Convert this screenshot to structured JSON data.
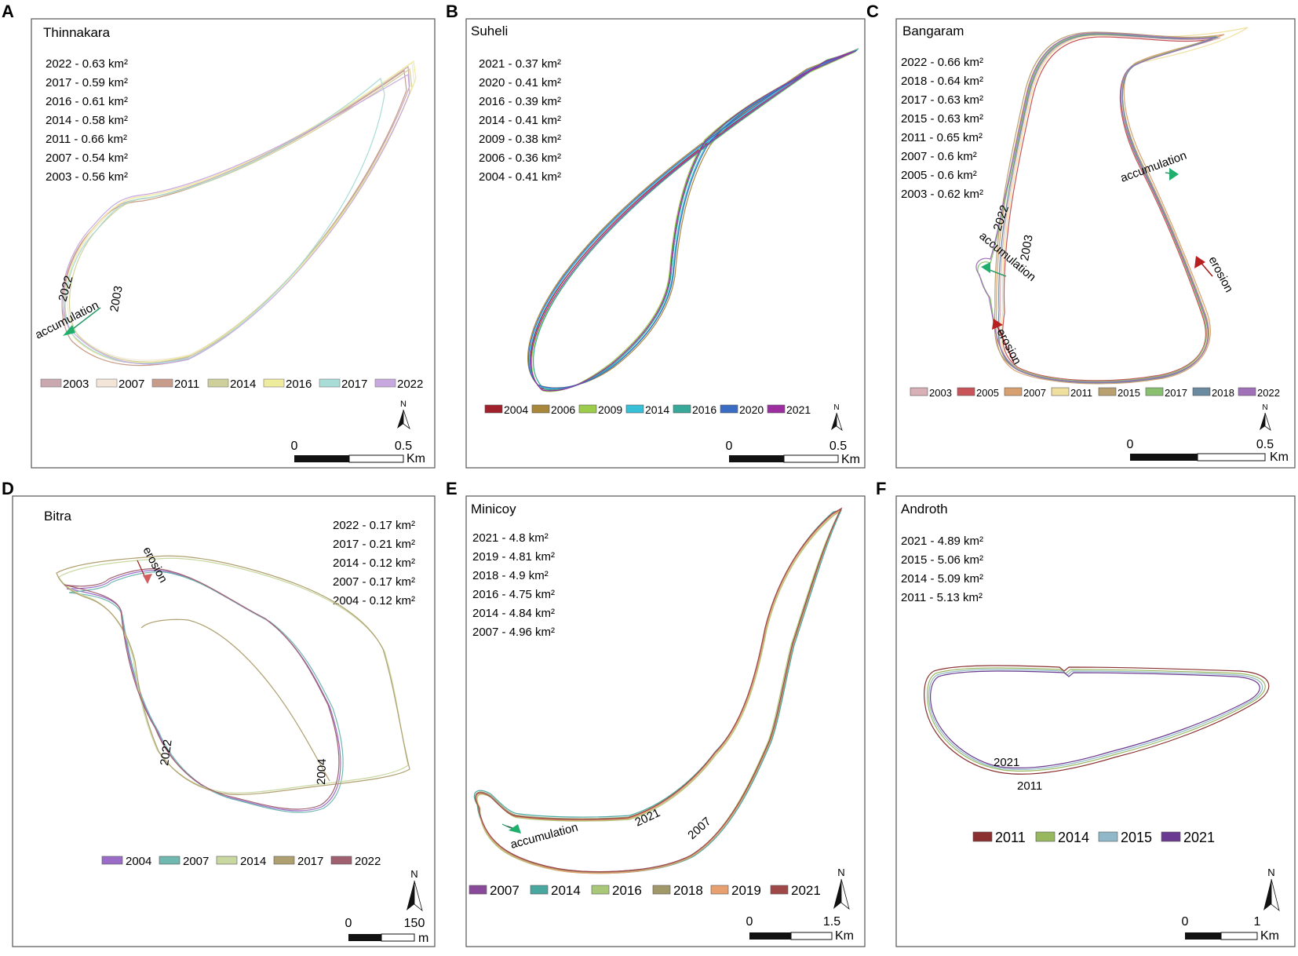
{
  "panels": [
    {
      "letter": "A",
      "title": "Thinnakara",
      "areas": [
        "2022 - 0.63 km²",
        "2017 - 0.59 km²",
        "2016 - 0.61 km²",
        "2014 - 0.58 km²",
        "2011 - 0.66 km²",
        "2007 - 0.54 km²",
        "2003 - 0.56 km²"
      ],
      "legend": [
        {
          "year": "2003",
          "color": "#c9a8b0"
        },
        {
          "year": "2007",
          "color": "#f3e6d8"
        },
        {
          "year": "2011",
          "color": "#c89c8a"
        },
        {
          "year": "2014",
          "color": "#cfcf9a"
        },
        {
          "year": "2016",
          "color": "#eeec9c"
        },
        {
          "year": "2017",
          "color": "#a8dcd6"
        },
        {
          "year": "2022",
          "color": "#c7a9df"
        }
      ],
      "annotations": [
        "2022",
        "accumulation",
        "2003"
      ],
      "scale": {
        "zero": "0",
        "max": "0.5",
        "unit": "Km"
      },
      "north": "N"
    },
    {
      "letter": "B",
      "title": "Suheli",
      "areas": [
        "2021 - 0.37 km²",
        "2020 - 0.41 km²",
        "2016 - 0.39 km²",
        "2014 - 0.41 km²",
        "2009 - 0.38 km²",
        "2006 - 0.36 km²",
        "2004 - 0.41 km²"
      ],
      "legend": [
        {
          "year": "2004",
          "color": "#a0202c"
        },
        {
          "year": "2006",
          "color": "#a8863a"
        },
        {
          "year": "2009",
          "color": "#9ccc4a"
        },
        {
          "year": "2014",
          "color": "#38c0d8"
        },
        {
          "year": "2016",
          "color": "#38a898"
        },
        {
          "year": "2020",
          "color": "#3a6cc4"
        },
        {
          "year": "2021",
          "color": "#9c2ea0"
        }
      ],
      "annotations": [],
      "scale": {
        "zero": "0",
        "max": "0.5",
        "unit": "Km"
      },
      "north": "N"
    },
    {
      "letter": "C",
      "title": "Bangaram",
      "areas": [
        "2022 - 0.66 km²",
        "2018 - 0.64 km²",
        "2017 - 0.63 km²",
        "2015 - 0.63 km²",
        "2011 - 0.65 km²",
        "2007 - 0.6 km²",
        "2005 - 0.6 km²",
        "2003 - 0.62 km²"
      ],
      "legend": [
        {
          "year": "2003",
          "color": "#d8b0b6"
        },
        {
          "year": "2005",
          "color": "#c8545a"
        },
        {
          "year": "2007",
          "color": "#d8a070"
        },
        {
          "year": "2011",
          "color": "#f0e0a0"
        },
        {
          "year": "2015",
          "color": "#b8a070"
        },
        {
          "year": "2017",
          "color": "#88c070"
        },
        {
          "year": "2018",
          "color": "#6a8aa0"
        },
        {
          "year": "2022",
          "color": "#a070b8"
        }
      ],
      "annotations": [
        "accumulation",
        "2022",
        "2003",
        "accumulation",
        "erosion",
        "erosion"
      ],
      "scale": {
        "zero": "0",
        "max": "0.5",
        "unit": "Km"
      },
      "north": "N"
    },
    {
      "letter": "D",
      "title": "Bitra",
      "areas": [
        "2022 - 0.17 km²",
        "2017 - 0.21 km²",
        "2014 - 0.12 km²",
        "2007 - 0.17 km²",
        "2004 - 0.12 km²"
      ],
      "legend": [
        {
          "year": "2004",
          "color": "#9a6cc8"
        },
        {
          "year": "2007",
          "color": "#70b8b0"
        },
        {
          "year": "2014",
          "color": "#c8d8a0"
        },
        {
          "year": "2017",
          "color": "#b0a070"
        },
        {
          "year": "2022",
          "color": "#a06070"
        }
      ],
      "annotations": [
        "erosion",
        "2022",
        "2004"
      ],
      "scale": {
        "zero": "0",
        "max": "150",
        "unit": "m"
      },
      "north": "N"
    },
    {
      "letter": "E",
      "title": "Minicoy",
      "areas": [
        "2021 - 4.8 km²",
        "2019 - 4.81 km²",
        "2018 - 4.9 km²",
        "2016 - 4.75 km²",
        "2014 - 4.84 km²",
        "2007 - 4.96 km²"
      ],
      "legend": [
        {
          "year": "2007",
          "color": "#8a4a9a"
        },
        {
          "year": "2014",
          "color": "#48a8a0"
        },
        {
          "year": "2016",
          "color": "#a8c878"
        },
        {
          "year": "2018",
          "color": "#a09868"
        },
        {
          "year": "2019",
          "color": "#e8a070"
        },
        {
          "year": "2021",
          "color": "#a04848"
        }
      ],
      "annotations": [
        "accumulation",
        "2021",
        "2007"
      ],
      "scale": {
        "zero": "0",
        "max": "1.5",
        "unit": "Km"
      },
      "north": "N"
    },
    {
      "letter": "F",
      "title": "Androth",
      "areas": [
        "2021 - 4.89 km²",
        "2015 - 5.06 km²",
        "2014 - 5.09 km²",
        "2011 - 5.13 km²"
      ],
      "legend": [
        {
          "year": "2011",
          "color": "#8a3030"
        },
        {
          "year": "2014",
          "color": "#98b860"
        },
        {
          "year": "2015",
          "color": "#90b8c8"
        },
        {
          "year": "2021",
          "color": "#6a3a90"
        }
      ],
      "annotations": [
        "2021",
        "2011"
      ],
      "scale": {
        "zero": "0",
        "max": "1",
        "unit": "Km"
      },
      "north": "N"
    }
  ]
}
